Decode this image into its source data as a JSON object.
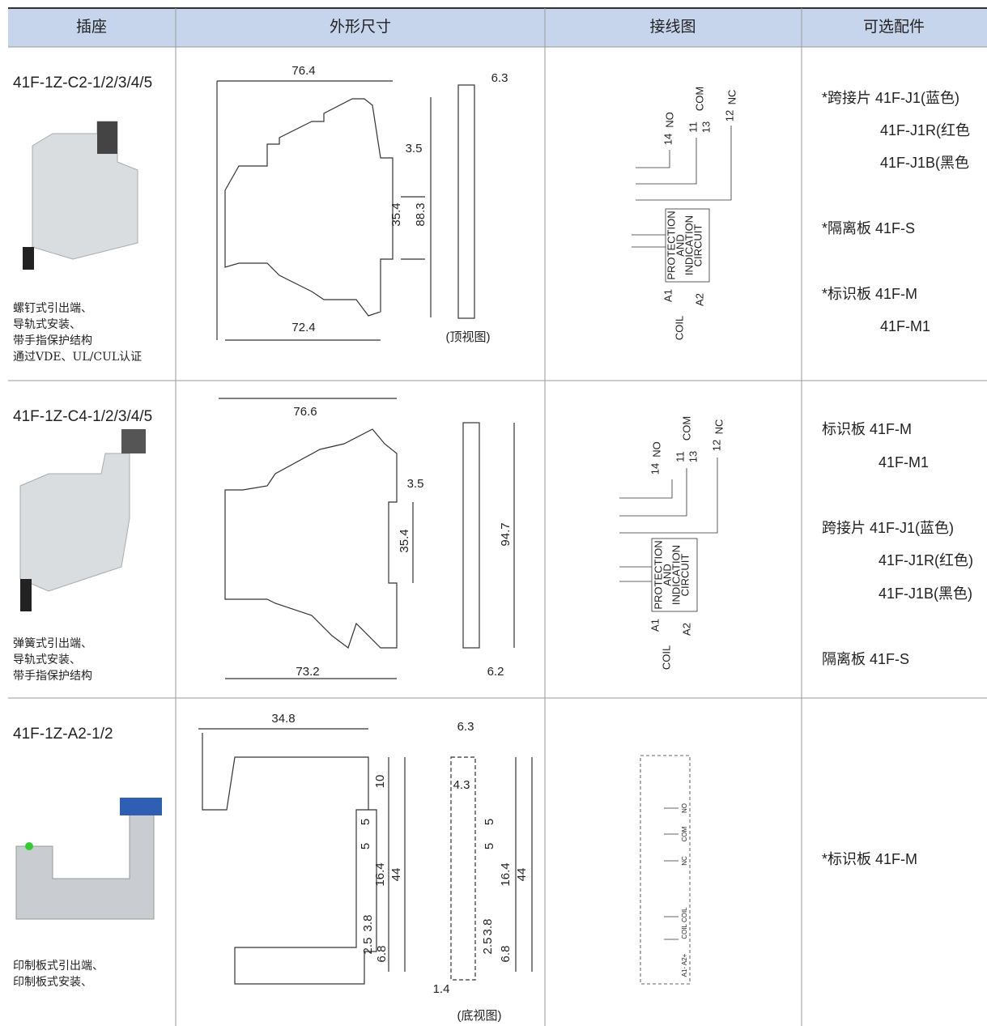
{
  "header": [
    "插座",
    "外形尺寸",
    "接线图",
    "可选配件"
  ],
  "rows": [
    {
      "model": "41F-1Z-C2-1/2/3/4/5",
      "features": [
        "螺钉式引出端、",
        "导轨式安装、",
        "带手指保护结构",
        "通过VDE、UL/CUL认证"
      ],
      "dimensions": [
        "76.4",
        "6.3",
        "3.5",
        "35.4",
        "88.3",
        "72.4",
        "(顶视图)"
      ],
      "wiring": [
        "NO",
        "14",
        "COM",
        "11",
        "13",
        "12",
        "NC",
        "PROTECTION",
        "AND",
        "INDICATION",
        "CIRCUIT",
        "A1",
        "A2",
        "COIL"
      ],
      "accessories": [
        "*跨接片  41F-J1(蓝色)",
        "41F-J1R(红色",
        "41F-J1B(黑色",
        "*隔离板  41F-S",
        "*标识板  41F-M",
        "41F-M1"
      ]
    },
    {
      "model": "41F-1Z-C4-1/2/3/4/5",
      "features": [
        "弹簧式引出端、",
        "导轨式安装、",
        "带手指保护结构"
      ],
      "dimensions": [
        "76.6",
        "3.5",
        "35.4",
        "94.7",
        "73.2",
        "6.2"
      ],
      "wiring": [
        "NO",
        "14",
        "COM",
        "11",
        "13",
        "12",
        "NC",
        "PROTECTION",
        "AND",
        "INDICATION",
        "CIRCUIT",
        "A1",
        "A2",
        "COIL"
      ],
      "accessories": [
        "标识板  41F-M",
        "41F-M1",
        "跨接片  41F-J1(蓝色)",
        "41F-J1R(红色)",
        "41F-J1B(黑色)",
        "隔离板  41F-S"
      ]
    },
    {
      "model": "41F-1Z-A2-1/2",
      "features": [
        "印制板式引出端、",
        "印制板式安装、"
      ],
      "dimensions": [
        "34.8",
        "6.3",
        "10",
        "4.3",
        "5",
        "5",
        "5",
        "5",
        "16.4",
        "44",
        "16.4",
        "44",
        "3.8",
        "2.5",
        "6.8",
        "3.8",
        "2.5",
        "6.8",
        "1.4",
        "(底视图)"
      ],
      "wiring": [
        "NO",
        "COM",
        "NC",
        "COIL COIL",
        "A1- A2+"
      ],
      "accessories": [
        "*标识板  41F-M"
      ]
    }
  ]
}
